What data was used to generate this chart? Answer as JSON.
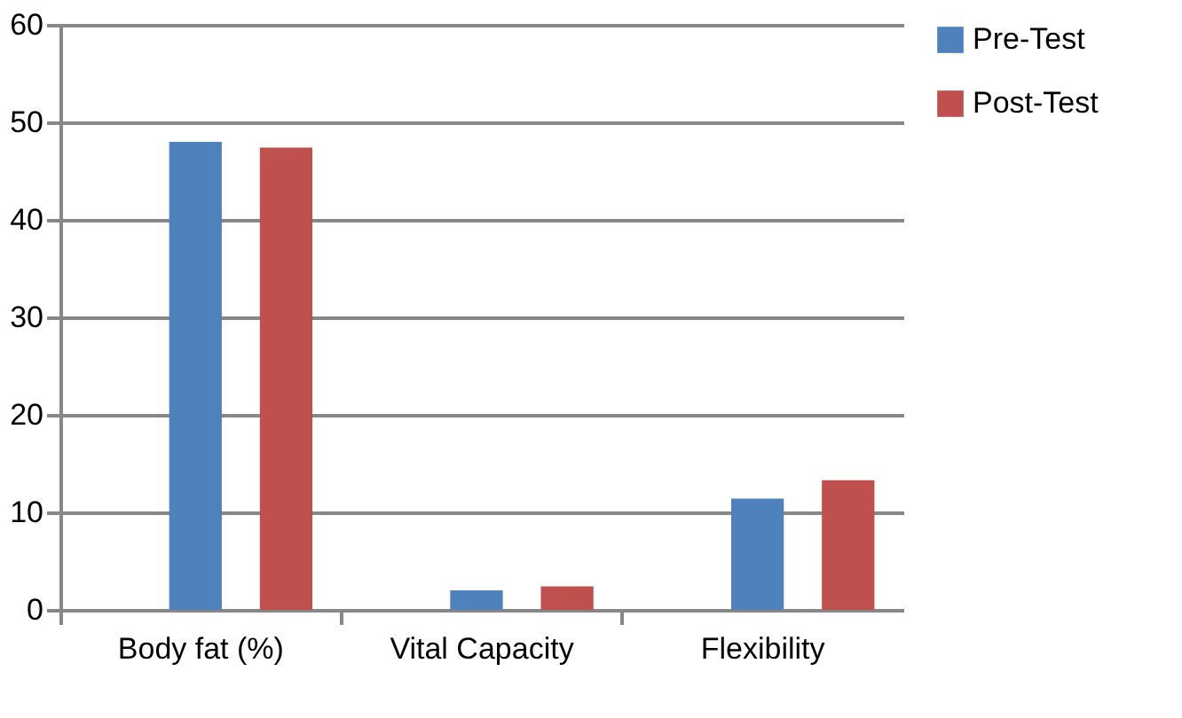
{
  "chart_data": {
    "type": "bar",
    "categories": [
      "Body fat (%)",
      "Vital Capacity",
      "Flexibility"
    ],
    "series": [
      {
        "name": "Pre-Test",
        "color": "#4f81bd",
        "values": [
          48.0,
          2.0,
          11.4
        ]
      },
      {
        "name": "Post-Test",
        "color": "#c0504d",
        "values": [
          47.4,
          2.4,
          13.3
        ]
      }
    ],
    "ylim": [
      0,
      60
    ],
    "yticks": [
      0,
      10,
      20,
      30,
      40,
      50,
      60
    ],
    "grid": "y",
    "legend": "right"
  }
}
